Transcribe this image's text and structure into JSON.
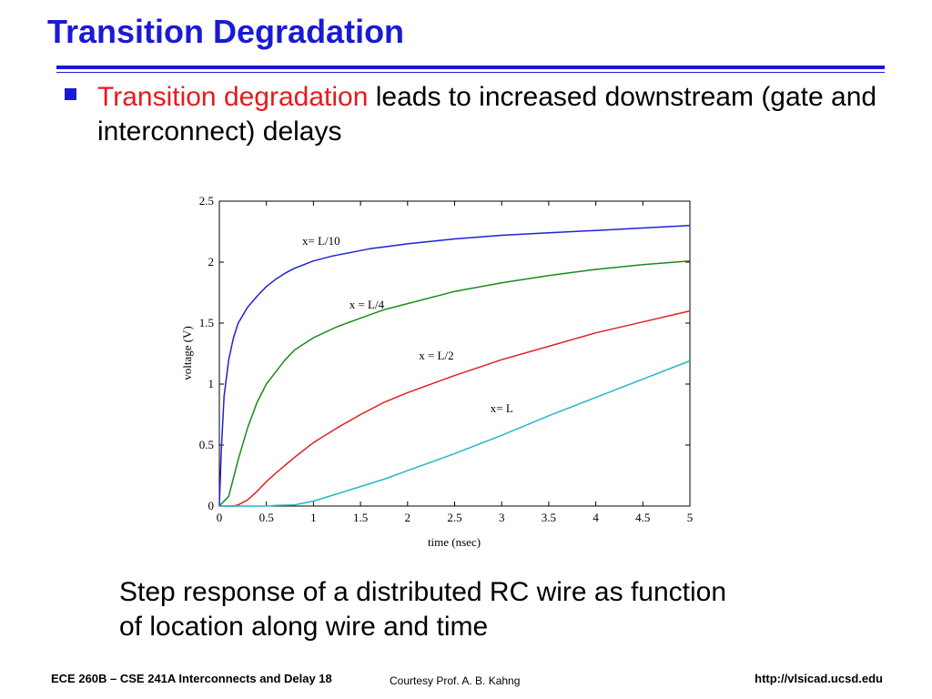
{
  "slide": {
    "title": "Transition Degradation",
    "bullet_highlight": "Transition degradation",
    "bullet_rest": " leads to increased downstream (gate and interconnect) delays",
    "caption_line1": "Step response of a distributed RC wire as function",
    "caption_line2": "of location along wire and time",
    "footer_left": "ECE 260B – CSE 241A Interconnects and Delay 18",
    "footer_center": "Courtesy Prof. A. B. Kahng",
    "footer_right": "http://vlsicad.ucsd.edu"
  },
  "colors": {
    "title": "#1a1ad6",
    "highlight": "#e8191d"
  },
  "chart_data": {
    "type": "line",
    "title": "",
    "xlabel": "time (nsec)",
    "ylabel": "voltage (V)",
    "xlim": [
      0,
      5
    ],
    "ylim": [
      0,
      2.5
    ],
    "x_ticks": [
      "0",
      "0.5",
      "1",
      "1.5",
      "2",
      "2.5",
      "3",
      "3.5",
      "4",
      "4.5",
      "5"
    ],
    "y_ticks": [
      "0",
      "0.5",
      "1",
      "1.5",
      "2",
      "2.5"
    ],
    "grid": false,
    "series": [
      {
        "name": "x= L/10",
        "color": "#2020d8",
        "x": [
          0,
          0.02,
          0.05,
          0.1,
          0.15,
          0.2,
          0.3,
          0.4,
          0.5,
          0.6,
          0.7,
          0.8,
          0.9,
          1.0,
          1.2,
          1.4,
          1.6,
          1.8,
          2.0,
          2.5,
          3.0,
          3.5,
          4.0,
          4.5,
          5.0
        ],
        "y": [
          0,
          0.45,
          0.9,
          1.2,
          1.38,
          1.5,
          1.63,
          1.72,
          1.8,
          1.86,
          1.91,
          1.95,
          1.98,
          2.01,
          2.05,
          2.08,
          2.11,
          2.13,
          2.15,
          2.19,
          2.22,
          2.24,
          2.26,
          2.28,
          2.3
        ]
      },
      {
        "name": "x = L/4",
        "color": "#1a8a1a",
        "x": [
          0,
          0.1,
          0.2,
          0.3,
          0.4,
          0.5,
          0.6,
          0.7,
          0.8,
          0.9,
          1.0,
          1.25,
          1.5,
          1.75,
          2.0,
          2.5,
          3.0,
          3.5,
          4.0,
          4.5,
          5.0
        ],
        "y": [
          0,
          0.08,
          0.38,
          0.64,
          0.85,
          1.0,
          1.1,
          1.2,
          1.28,
          1.33,
          1.38,
          1.47,
          1.54,
          1.61,
          1.66,
          1.76,
          1.83,
          1.89,
          1.94,
          1.98,
          2.01
        ]
      },
      {
        "name": "x = L/2",
        "color": "#e02020",
        "x": [
          0,
          0.15,
          0.2,
          0.3,
          0.4,
          0.5,
          0.6,
          0.8,
          1.0,
          1.25,
          1.5,
          1.75,
          2.0,
          2.5,
          3.0,
          3.5,
          4.0,
          4.5,
          5.0
        ],
        "y": [
          0,
          0,
          0.01,
          0.05,
          0.12,
          0.2,
          0.27,
          0.4,
          0.52,
          0.64,
          0.75,
          0.85,
          0.93,
          1.07,
          1.2,
          1.31,
          1.42,
          1.51,
          1.6
        ]
      },
      {
        "name": "x= L",
        "color": "#20b8c8",
        "x": [
          0,
          0.5,
          0.6,
          0.8,
          1.0,
          1.25,
          1.5,
          1.75,
          2.0,
          2.5,
          3.0,
          3.5,
          4.0,
          4.5,
          5.0
        ],
        "y": [
          0,
          0,
          0.005,
          0.01,
          0.04,
          0.1,
          0.16,
          0.22,
          0.29,
          0.43,
          0.58,
          0.74,
          0.89,
          1.04,
          1.19
        ]
      }
    ],
    "annotations": [
      {
        "text": "x= L/10",
        "x": 0.88,
        "y": 2.14
      },
      {
        "text": "x = L/4",
        "x": 1.38,
        "y": 1.62
      },
      {
        "text": "x = L/2",
        "x": 2.12,
        "y": 1.2
      },
      {
        "text": "x= L",
        "x": 2.88,
        "y": 0.77
      }
    ]
  }
}
